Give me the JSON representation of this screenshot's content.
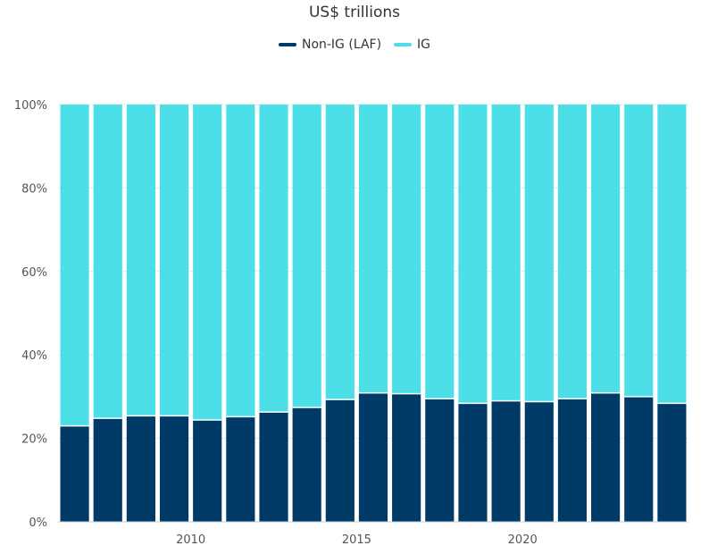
{
  "chart_data": {
    "type": "bar",
    "stacked": true,
    "title": "US$ trillions",
    "xlabel": "",
    "ylabel": "",
    "ylim": [
      0,
      100
    ],
    "yticks": [
      0,
      20,
      40,
      60,
      80,
      100
    ],
    "ytick_labels": [
      "0%",
      "20%",
      "40%",
      "60%",
      "80%",
      "100%"
    ],
    "categories": [
      2006,
      2007,
      2008,
      2009,
      2010,
      2011,
      2012,
      2013,
      2014,
      2015,
      2016,
      2017,
      2018,
      2019,
      2020,
      2021,
      2022,
      2023,
      2024
    ],
    "xtick_labels": [
      {
        "category": 2010,
        "label": "2010"
      },
      {
        "category": 2015,
        "label": "2015"
      },
      {
        "category": 2020,
        "label": "2020"
      }
    ],
    "legend_position": "top-center",
    "grid": true,
    "series": [
      {
        "name": "Non-IG (LAF)",
        "color": "#003a66",
        "values": [
          23.0,
          24.8,
          25.4,
          25.4,
          24.4,
          25.2,
          26.3,
          27.4,
          29.3,
          30.9,
          30.7,
          29.5,
          28.4,
          29.0,
          28.8,
          29.5,
          30.9,
          30.0,
          28.4
        ]
      },
      {
        "name": "IG",
        "color": "#4ddfe8",
        "values": [
          77.0,
          75.2,
          74.6,
          74.6,
          75.6,
          74.8,
          73.7,
          72.6,
          70.7,
          69.1,
          69.3,
          70.5,
          71.6,
          71.0,
          71.2,
          70.5,
          69.1,
          70.0,
          71.6
        ]
      }
    ]
  }
}
